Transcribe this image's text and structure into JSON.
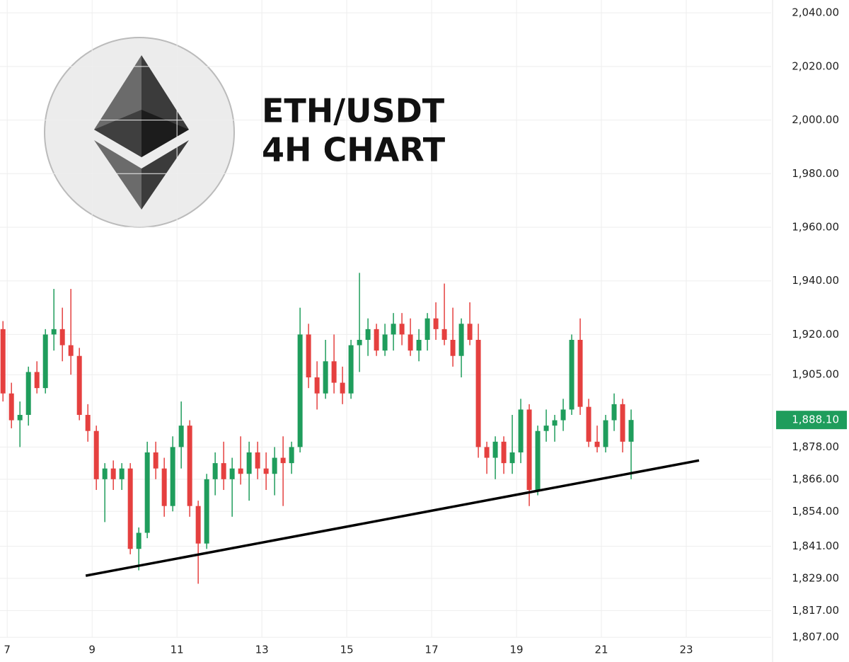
{
  "chart_data": {
    "type": "candlestick",
    "title_lines": [
      "ETH/USDT",
      "4H CHART"
    ],
    "x": [
      6.9,
      7.1,
      7.3,
      7.5,
      7.7,
      7.9,
      8.1,
      8.3,
      8.5,
      8.7,
      8.9,
      9.1,
      9.3,
      9.5,
      9.7,
      9.9,
      10.1,
      10.3,
      10.5,
      10.7,
      10.9,
      11.1,
      11.3,
      11.5,
      11.7,
      11.9,
      12.1,
      12.3,
      12.5,
      12.7,
      12.9,
      13.1,
      13.3,
      13.5,
      13.7,
      13.9,
      14.1,
      14.3,
      14.5,
      14.7,
      14.9,
      15.1,
      15.3,
      15.5,
      15.7,
      15.9,
      16.1,
      16.3,
      16.5,
      16.7,
      16.9,
      17.1,
      17.3,
      17.5,
      17.7,
      17.9,
      18.1,
      18.3,
      18.5,
      18.7,
      18.9,
      19.1,
      19.3,
      19.5,
      19.7,
      19.9,
      20.1,
      20.3,
      20.5,
      20.7,
      20.9,
      21.1,
      21.3,
      21.5,
      21.7
    ],
    "open": [
      1922,
      1898,
      1888,
      1890,
      1906,
      1900,
      1920,
      1922,
      1916,
      1912,
      1890,
      1884,
      1866,
      1870,
      1866,
      1870,
      1840,
      1846,
      1876,
      1870,
      1856,
      1878,
      1886,
      1856,
      1842,
      1866,
      1872,
      1866,
      1870,
      1868,
      1876,
      1870,
      1868,
      1874,
      1872,
      1878,
      1920,
      1904,
      1898,
      1910,
      1902,
      1898,
      1916,
      1918,
      1922,
      1914,
      1920,
      1924,
      1920,
      1914,
      1918,
      1926,
      1922,
      1918,
      1912,
      1924,
      1918,
      1878,
      1874,
      1880,
      1872,
      1876,
      1892,
      1862,
      1884,
      1886,
      1888,
      1892,
      1918,
      1893,
      1880,
      1878,
      1888,
      1894,
      1880
    ],
    "high": [
      1925,
      1902,
      1895,
      1908,
      1910,
      1922,
      1937,
      1930,
      1937,
      1915,
      1894,
      1886,
      1872,
      1873,
      1872,
      1872,
      1848,
      1880,
      1880,
      1874,
      1882,
      1895,
      1888,
      1858,
      1868,
      1876,
      1880,
      1874,
      1882,
      1880,
      1880,
      1876,
      1878,
      1882,
      1880,
      1930,
      1924,
      1910,
      1918,
      1920,
      1908,
      1918,
      1943,
      1926,
      1924,
      1924,
      1928,
      1928,
      1926,
      1922,
      1928,
      1932,
      1939,
      1930,
      1926,
      1932,
      1924,
      1880,
      1882,
      1882,
      1890,
      1896,
      1894,
      1886,
      1892,
      1890,
      1896,
      1920,
      1926,
      1896,
      1886,
      1890,
      1898,
      1896,
      1892
    ],
    "low": [
      1895,
      1885,
      1878,
      1886,
      1898,
      1898,
      1914,
      1910,
      1905,
      1888,
      1880,
      1862,
      1850,
      1862,
      1862,
      1838,
      1832,
      1844,
      1866,
      1852,
      1854,
      1870,
      1852,
      1827,
      1840,
      1860,
      1862,
      1852,
      1864,
      1858,
      1866,
      1862,
      1860,
      1856,
      1868,
      1876,
      1900,
      1892,
      1896,
      1898,
      1894,
      1896,
      1906,
      1912,
      1912,
      1912,
      1914,
      1916,
      1912,
      1910,
      1914,
      1918,
      1916,
      1908,
      1904,
      1916,
      1874,
      1868,
      1866,
      1868,
      1868,
      1872,
      1856,
      1860,
      1880,
      1880,
      1884,
      1890,
      1890,
      1878,
      1876,
      1876,
      1884,
      1876,
      1866
    ],
    "close": [
      1898,
      1888,
      1890,
      1906,
      1900,
      1920,
      1922,
      1916,
      1912,
      1890,
      1884,
      1866,
      1870,
      1866,
      1870,
      1840,
      1846,
      1876,
      1870,
      1856,
      1878,
      1886,
      1856,
      1842,
      1866,
      1872,
      1866,
      1870,
      1868,
      1876,
      1870,
      1868,
      1874,
      1872,
      1878,
      1920,
      1904,
      1898,
      1910,
      1902,
      1898,
      1916,
      1918,
      1922,
      1914,
      1920,
      1924,
      1920,
      1914,
      1918,
      1926,
      1922,
      1918,
      1912,
      1924,
      1918,
      1878,
      1874,
      1880,
      1872,
      1876,
      1892,
      1862,
      1884,
      1886,
      1888,
      1892,
      1918,
      1893,
      1880,
      1878,
      1888,
      1894,
      1880,
      1888.1
    ],
    "up_color": "#1f9d5c",
    "down_color": "#e5403f",
    "last_price": {
      "value": 1888.1,
      "label": "1,888.10"
    },
    "trendline": {
      "x": [
        8.85,
        23.3
      ],
      "y": [
        1830,
        1873
      ],
      "color": "#000000"
    },
    "xlim": [
      6.83,
      25
    ],
    "ylim": [
      1797.8,
      2044.8
    ],
    "xticks": [
      7,
      9,
      11,
      13,
      15,
      17,
      19,
      21,
      23
    ],
    "yticks": [
      {
        "value": 2040,
        "label": "2,040.00"
      },
      {
        "value": 2020,
        "label": "2,020.00"
      },
      {
        "value": 2000,
        "label": "2,000.00"
      },
      {
        "value": 1980,
        "label": "1,980.00"
      },
      {
        "value": 1960,
        "label": "1,960.00"
      },
      {
        "value": 1940,
        "label": "1,940.00"
      },
      {
        "value": 1920,
        "label": "1,920.00"
      },
      {
        "value": 1905,
        "label": "1,905.00"
      },
      {
        "value": 1878,
        "label": "1,878.00"
      },
      {
        "value": 1866,
        "label": "1,866.00"
      },
      {
        "value": 1854,
        "label": "1,854.00"
      },
      {
        "value": 1841,
        "label": "1,841.00"
      },
      {
        "value": 1829,
        "label": "1,829.00"
      },
      {
        "value": 1817,
        "label": "1,817.00"
      },
      {
        "value": 1807,
        "label": "1,807.00"
      }
    ],
    "grid": true
  }
}
